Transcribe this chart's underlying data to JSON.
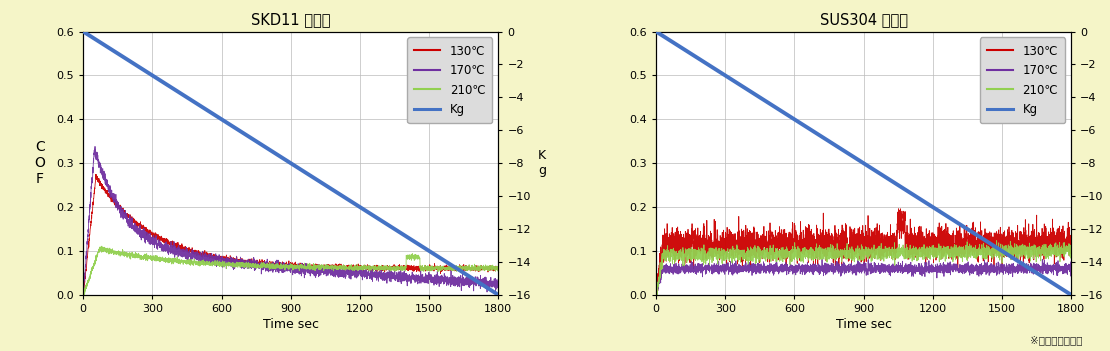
{
  "background_color": "#f5f5c8",
  "plot_bg_color": "#ffffff",
  "title1": "SKD11 試験片",
  "title2": "SUS304 試験片",
  "xlabel": "Time sec",
  "ylabel_left": "C\nO\nF",
  "ylim_left": [
    0,
    0.6
  ],
  "ylim_right": [
    -16,
    0
  ],
  "xlim": [
    0,
    1800
  ],
  "xticks": [
    0,
    300,
    600,
    900,
    1200,
    1500,
    1800
  ],
  "yticks_left": [
    0,
    0.1,
    0.2,
    0.3,
    0.4,
    0.5,
    0.6
  ],
  "yticks_right": [
    0,
    -2,
    -4,
    -6,
    -8,
    -10,
    -12,
    -14,
    -16
  ],
  "footer_text": "※無潤滑下で評価",
  "legend_labels": [
    "130℃",
    "170℃",
    "210℃",
    "Kg"
  ],
  "legend_colors": [
    "#cc0000",
    "#7030a0",
    "#92d050",
    "#4472c4"
  ],
  "kg_line_color": "#4472c4",
  "skd11": {
    "c130_base": 0.06,
    "c130_peak": 0.27,
    "c130_peak_t": 55,
    "c130_decay_t": 250,
    "c170_base": 0.075,
    "c170_peak": 0.33,
    "c170_peak_t": 48,
    "c170_decay_t": 150,
    "c170_final": 0.03,
    "c210_base": 0.06,
    "c210_peak": 0.105,
    "c210_peak_t": 70,
    "c210_spike_t": 1420,
    "c210_spike_v": 0.085
  },
  "sus304": {
    "c130_base": 0.115,
    "c130_noise": 0.018,
    "c130_spike_t": 1060,
    "c130_spike_v": 0.055,
    "c170_base": 0.06,
    "c170_noise": 0.006,
    "c210_base": 0.09,
    "c210_noise": 0.008,
    "c210_rise_end": 0.1
  }
}
